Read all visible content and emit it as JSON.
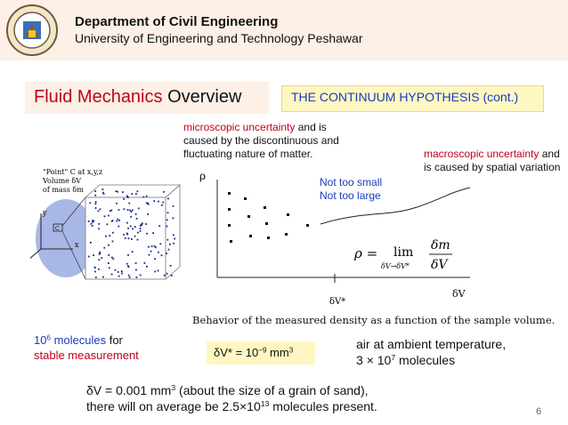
{
  "header": {
    "department": "Department of Civil Engineering",
    "university": "University of Engineering and Technology Peshawar"
  },
  "title": {
    "part1": "Fluid Mechanics",
    "part2": "Overview"
  },
  "subtitle": "THE CONTINUUM HYPOTHESIS (cont.)",
  "annotations": {
    "micro_red": "microscopic uncertainty",
    "micro_rest": " and is caused by the discontinuous and fluctuating nature of matter.",
    "macro_red": "macroscopic uncertainty",
    "macro_rest": " and is caused by spatial variation",
    "not_small": "Not too small",
    "not_large": "Not too large"
  },
  "figure_left": {
    "point_label": "\"Point\" C at x,y,z",
    "volume_label": "Volume δV",
    "mass_label": "of mass δm",
    "axis_y": "y",
    "axis_x": "x",
    "point_c": "C"
  },
  "graph": {
    "y_axis_label": "ρ",
    "x_axis_label": "δV",
    "tick_label": "δV*",
    "formula_lhs": "ρ =",
    "formula_lim": "lim",
    "formula_sub": "δV→δV*",
    "formula_num": "δm",
    "formula_den": "δV",
    "caption": "Behavior of the measured density as a function of the sample volume."
  },
  "molecules": {
    "count_base": "10",
    "count_exp": "6",
    "blue_text": " molecules",
    "for_text": " for",
    "line2": "stable measurement"
  },
  "dv_box": {
    "prefix": "δV* = 10",
    "exp": "−9",
    "unit": " mm",
    "unit_exp": "3"
  },
  "air": {
    "line1": "air at ambient temperature,",
    "line2_base": "3 × 10",
    "line2_exp": "7",
    "line2_rest": " molecules"
  },
  "sand": {
    "l1_prefix": "δV = 0.001 mm",
    "l1_exp": "3",
    "l1_rest": " (about the size of a grain of sand),",
    "l2_prefix": "there will on average be 2.5×10",
    "l2_exp": "13",
    "l2_rest": " molecules present."
  },
  "page_number": "6",
  "colors": {
    "accent_red": "#c0001a",
    "accent_blue": "#1a3bbf",
    "header_bg": "#fdf0e6",
    "highlight": "#fff7c2"
  }
}
